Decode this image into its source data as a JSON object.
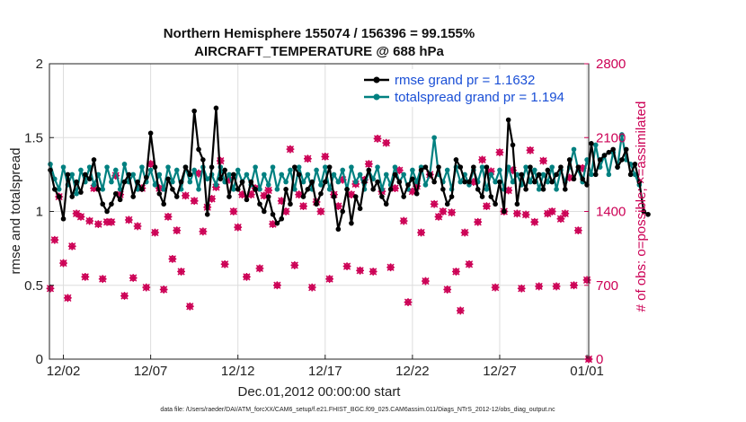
{
  "chart_data": {
    "type": "line",
    "title_line1": "Northern Hemisphere 155074 / 156396 = 99.155%",
    "title_line2": "AIRCRAFT_TEMPERATURE @ 688 hPa",
    "xlabel": "Dec.01,2012 00:00:00 start",
    "ylabel_left": "rmse and totalspread",
    "ylabel_right": "# of obs: o=possible; ×=assimilated",
    "footer": "data file: /Users/raeder/DAI/ATM_forcXX/CAM6_setup/f.e21.FHIST_BGC.f09_025.CAM6assim.011/Diags_NTrS_2012-12/obs_diag_output.nc",
    "x_tick_labels": [
      "12/02",
      "12/07",
      "12/12",
      "12/17",
      "12/22",
      "12/27",
      "01/01"
    ],
    "x_tick_positions": [
      2,
      7,
      12,
      17,
      22,
      27,
      32
    ],
    "xlim": [
      1.2,
      32.1
    ],
    "ylim_left": [
      0,
      2
    ],
    "y_ticks_left": [
      "0",
      "0.5",
      "1",
      "1.5",
      "2"
    ],
    "y_tick_values_left": [
      0,
      0.5,
      1,
      1.5,
      2
    ],
    "ylim_right": [
      0,
      2800
    ],
    "y_ticks_right": [
      "0",
      "700",
      "1400",
      "2100",
      "2800"
    ],
    "y_tick_values_right": [
      0,
      700,
      1400,
      2100,
      2800
    ],
    "grid": true,
    "legend_position": "top-right",
    "colors": {
      "rmse": "#000000",
      "spread": "#008080",
      "obs": "#cc0055"
    },
    "series": [
      {
        "name": "rmse grand pr = 1.1632",
        "x_start": 1.25,
        "x_step": 0.25,
        "values": [
          1.28,
          1.15,
          1.1,
          0.95,
          1.25,
          1.1,
          1.2,
          1.13,
          1.25,
          1.22,
          1.35,
          1.15,
          1.05,
          1.0,
          1.05,
          1.12,
          1.08,
          1.2,
          1.25,
          1.1,
          1.2,
          1.15,
          1.23,
          1.53,
          1.3,
          1.12,
          1.05,
          1.22,
          1.15,
          1.1,
          1.2,
          1.3,
          1.25,
          1.68,
          1.42,
          1.35,
          0.98,
          1.3,
          1.7,
          1.22,
          1.28,
          1.1,
          1.25,
          1.15,
          1.2,
          1.08,
          1.2,
          1.15,
          1.05,
          1.0,
          1.1,
          0.98,
          0.92,
          0.95,
          1.15,
          1.05,
          1.3,
          1.25,
          1.1,
          1.15,
          1.2,
          1.05,
          1.12,
          1.2,
          1.3,
          1.1,
          0.88,
          1.0,
          1.15,
          0.92,
          1.1,
          1.02,
          1.2,
          1.28,
          1.15,
          1.2,
          1.1,
          1.05,
          1.15,
          1.25,
          1.2,
          1.1,
          1.18,
          1.22,
          1.12,
          1.28,
          1.3,
          1.25,
          1.2,
          1.3,
          1.15,
          1.05,
          1.1,
          1.35,
          1.3,
          1.2,
          1.2,
          1.3,
          1.15,
          1.1,
          1.3,
          1.1,
          1.05,
          1.2,
          1.0,
          1.62,
          1.45,
          1.05,
          1.25,
          1.15,
          1.3,
          1.2,
          1.25,
          1.15,
          1.28,
          1.2,
          1.25,
          1.3,
          1.15,
          1.35,
          1.22,
          1.3,
          1.22,
          1.18,
          1.46,
          1.25,
          1.35,
          1.38,
          1.4,
          1.42,
          1.3,
          1.35,
          1.42,
          1.25,
          1.32,
          1.2,
          1.0,
          0.98
        ]
      },
      {
        "name": "totalspread grand pr = 1.194",
        "x_start": 1.25,
        "x_step": 0.25,
        "values": [
          1.32,
          1.22,
          1.15,
          1.3,
          1.18,
          1.25,
          1.12,
          1.28,
          1.2,
          1.3,
          1.18,
          1.25,
          1.15,
          1.3,
          1.2,
          1.28,
          1.15,
          1.32,
          1.2,
          1.25,
          1.15,
          1.3,
          1.2,
          1.28,
          1.18,
          1.25,
          1.15,
          1.3,
          1.2,
          1.28,
          1.15,
          1.3,
          1.2,
          1.28,
          1.15,
          1.3,
          1.22,
          1.25,
          1.18,
          1.3,
          1.2,
          1.25,
          1.15,
          1.28,
          1.2,
          1.25,
          1.18,
          1.3,
          1.15,
          1.25,
          1.18,
          1.3,
          1.15,
          1.25,
          1.2,
          1.28,
          1.15,
          1.3,
          1.2,
          1.25,
          1.15,
          1.28,
          1.18,
          1.3,
          1.15,
          1.25,
          1.2,
          1.28,
          1.15,
          1.3,
          1.2,
          1.25,
          1.15,
          1.28,
          1.22,
          1.3,
          1.15,
          1.25,
          1.18,
          1.3,
          1.2,
          1.25,
          1.15,
          1.28,
          1.2,
          1.3,
          1.18,
          1.25,
          1.5,
          1.25,
          1.2,
          1.28,
          1.15,
          1.3,
          1.2,
          1.25,
          1.18,
          1.28,
          1.2,
          1.3,
          1.15,
          1.25,
          1.2,
          1.28,
          1.15,
          1.3,
          1.2,
          1.25,
          1.18,
          1.3,
          1.2,
          1.28,
          1.15,
          1.25,
          1.2,
          1.3,
          1.15,
          1.28,
          1.2,
          1.3,
          1.42,
          1.28,
          1.2,
          1.35,
          1.25,
          1.45,
          1.3,
          1.38,
          1.25,
          1.4,
          1.3,
          1.52,
          1.35,
          1.32,
          1.25,
          1.18
        ]
      },
      {
        "name": "obs possible / assimilated",
        "axis": "right",
        "points": [
          [
            1.25,
            670
          ],
          [
            1.5,
            1130
          ],
          [
            1.75,
            1540
          ],
          [
            2.0,
            910
          ],
          [
            2.25,
            580
          ],
          [
            2.5,
            1070
          ],
          [
            2.75,
            1380
          ],
          [
            3.0,
            1350
          ],
          [
            3.25,
            780
          ],
          [
            3.5,
            1310
          ],
          [
            3.75,
            1620
          ],
          [
            4.0,
            1280
          ],
          [
            4.25,
            760
          ],
          [
            4.5,
            1300
          ],
          [
            4.75,
            1300
          ],
          [
            5.0,
            1740
          ],
          [
            5.25,
            1560
          ],
          [
            5.5,
            600
          ],
          [
            5.75,
            1320
          ],
          [
            6.0,
            770
          ],
          [
            6.25,
            1260
          ],
          [
            6.5,
            1620
          ],
          [
            6.75,
            680
          ],
          [
            7.0,
            1850
          ],
          [
            7.25,
            1200
          ],
          [
            7.5,
            1620
          ],
          [
            7.75,
            660
          ],
          [
            8.0,
            1350
          ],
          [
            8.25,
            950
          ],
          [
            8.5,
            1220
          ],
          [
            8.75,
            830
          ],
          [
            9.0,
            1550
          ],
          [
            9.25,
            500
          ],
          [
            9.5,
            1500
          ],
          [
            9.75,
            1760
          ],
          [
            10.0,
            1210
          ],
          [
            10.25,
            1440
          ],
          [
            10.5,
            1520
          ],
          [
            10.75,
            1630
          ],
          [
            11.0,
            1880
          ],
          [
            11.25,
            900
          ],
          [
            11.5,
            1700
          ],
          [
            11.75,
            1400
          ],
          [
            12.0,
            1250
          ],
          [
            12.25,
            1560
          ],
          [
            12.5,
            780
          ],
          [
            12.75,
            1560
          ],
          [
            13.0,
            1620
          ],
          [
            13.25,
            860
          ],
          [
            13.5,
            1550
          ],
          [
            13.75,
            1600
          ],
          [
            14.0,
            1280
          ],
          [
            14.25,
            700
          ],
          [
            14.5,
            1500
          ],
          [
            14.75,
            1400
          ],
          [
            15.0,
            1990
          ],
          [
            15.25,
            890
          ],
          [
            15.5,
            1560
          ],
          [
            15.75,
            1450
          ],
          [
            16.0,
            1900
          ],
          [
            16.25,
            680
          ],
          [
            16.5,
            1490
          ],
          [
            16.75,
            1400
          ],
          [
            17.0,
            1920
          ],
          [
            17.25,
            760
          ],
          [
            17.5,
            1560
          ],
          [
            17.75,
            1450
          ],
          [
            18.0,
            1700
          ],
          [
            18.25,
            880
          ],
          [
            18.5,
            1560
          ],
          [
            18.75,
            1660
          ],
          [
            19.0,
            840
          ],
          [
            19.25,
            1700
          ],
          [
            19.5,
            1850
          ],
          [
            19.75,
            830
          ],
          [
            20.0,
            2090
          ],
          [
            20.25,
            1590
          ],
          [
            20.5,
            2050
          ],
          [
            20.75,
            870
          ],
          [
            21.0,
            1620
          ],
          [
            21.25,
            1790
          ],
          [
            21.5,
            1310
          ],
          [
            21.75,
            540
          ],
          [
            22.0,
            1590
          ],
          [
            22.25,
            1640
          ],
          [
            22.5,
            1200
          ],
          [
            22.75,
            740
          ],
          [
            23.0,
            1750
          ],
          [
            23.25,
            1470
          ],
          [
            23.5,
            1350
          ],
          [
            23.75,
            1400
          ],
          [
            24.0,
            660
          ],
          [
            24.25,
            1390
          ],
          [
            24.5,
            830
          ],
          [
            24.75,
            460
          ],
          [
            25.0,
            1200
          ],
          [
            25.25,
            900
          ],
          [
            25.5,
            1680
          ],
          [
            25.75,
            1300
          ],
          [
            26.0,
            1890
          ],
          [
            26.25,
            1450
          ],
          [
            26.5,
            1780
          ],
          [
            26.75,
            680
          ],
          [
            27.0,
            1960
          ],
          [
            27.25,
            1400
          ],
          [
            27.5,
            1600
          ],
          [
            27.75,
            1790
          ],
          [
            28.0,
            1380
          ],
          [
            28.25,
            670
          ],
          [
            28.5,
            1370
          ],
          [
            28.75,
            1980
          ],
          [
            29.0,
            1300
          ],
          [
            29.25,
            690
          ],
          [
            29.5,
            1880
          ],
          [
            29.75,
            1380
          ],
          [
            30.0,
            1400
          ],
          [
            30.25,
            690
          ],
          [
            30.5,
            1330
          ],
          [
            30.75,
            1380
          ],
          [
            31.0,
            1720
          ],
          [
            31.25,
            700
          ],
          [
            31.5,
            1220
          ],
          [
            31.75,
            1810
          ],
          [
            32.0,
            750
          ],
          [
            32.1,
            0
          ]
        ]
      }
    ]
  }
}
